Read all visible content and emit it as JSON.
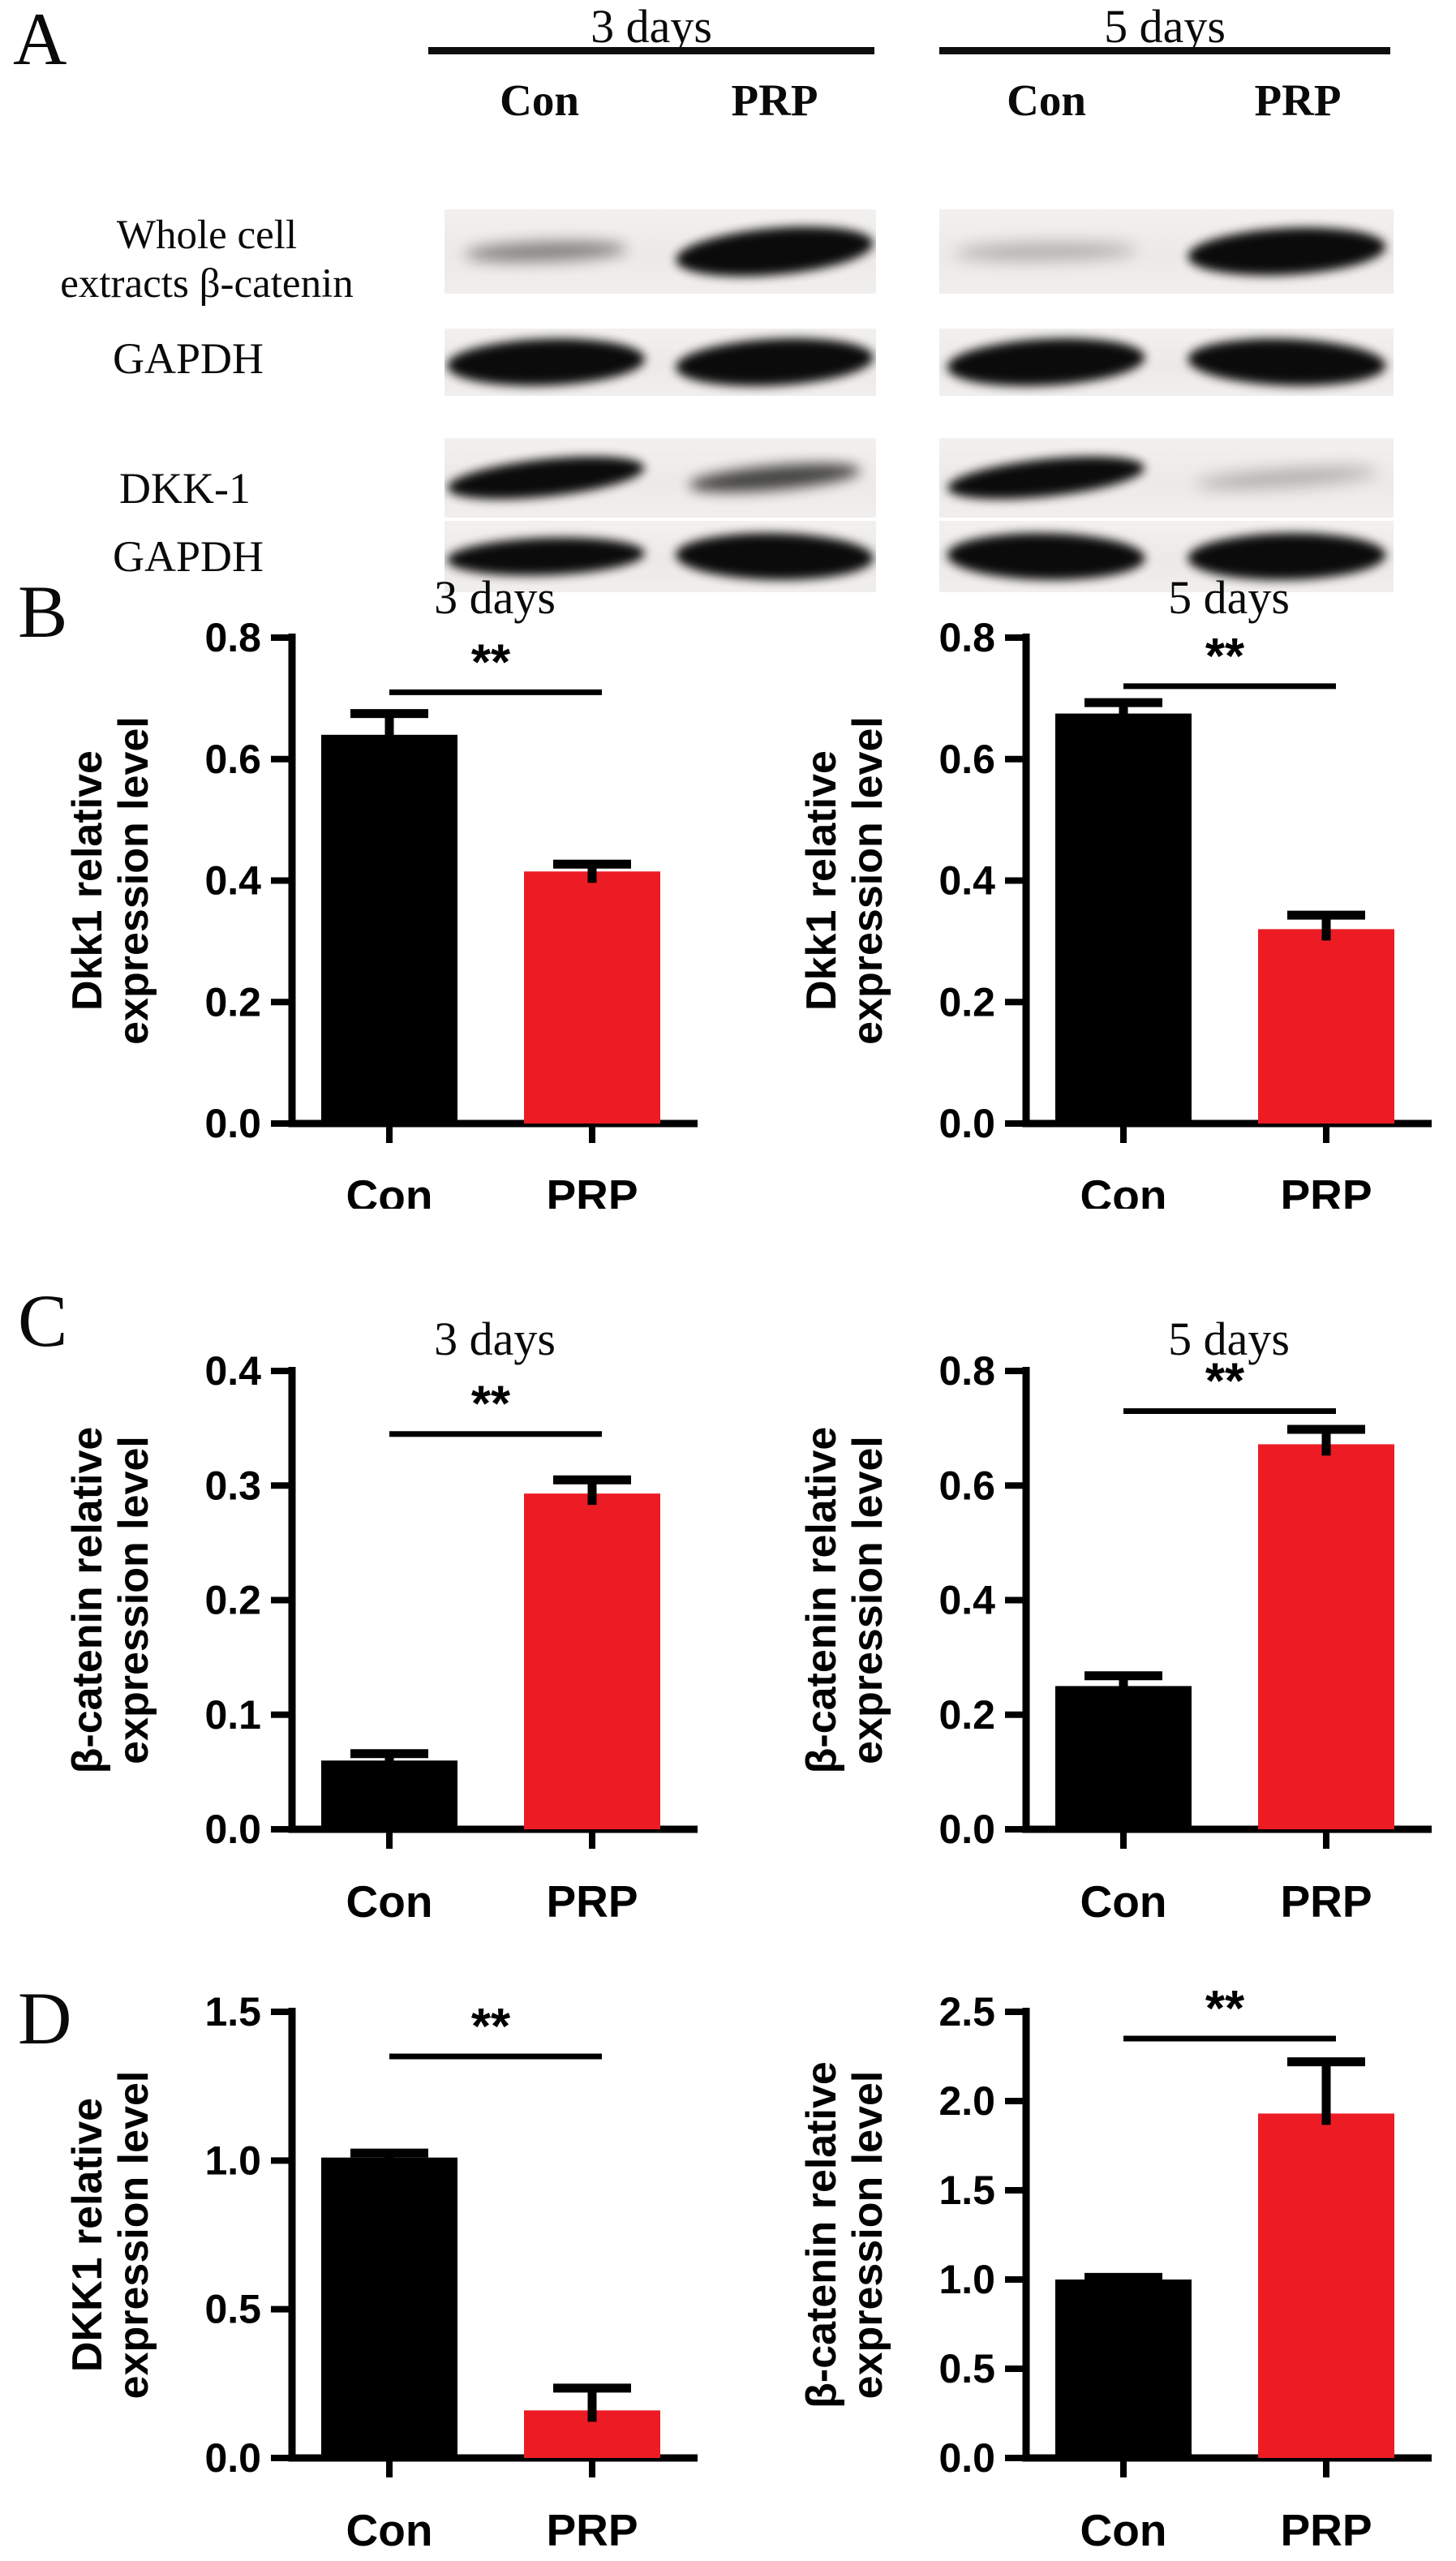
{
  "panels": {
    "a_letter": "A",
    "b_letter": "B",
    "c_letter": "C",
    "d_letter": "D"
  },
  "colors": {
    "background": "#ffffff",
    "bar_black": "#000000",
    "bar_red": "#ed1c24",
    "axis": "#000000",
    "blot_band": "#000000"
  },
  "western_blot": {
    "group_headers": [
      "3 days",
      "5 days"
    ],
    "lane_labels": [
      [
        "Con",
        "PRP"
      ],
      [
        "Con",
        "PRP"
      ]
    ],
    "row_labels": [
      [
        "Whole cell",
        "extracts β-catenin"
      ],
      [
        "GAPDH"
      ],
      [
        "DKK-1"
      ],
      [
        "GAPDH"
      ]
    ],
    "strips": [
      {
        "row": 0,
        "group": "3 days",
        "bands": [
          {
            "lane": "Con",
            "intensity": "faint",
            "tilt": -2
          },
          {
            "lane": "PRP",
            "intensity": "strong",
            "tilt": -5,
            "thick": true
          }
        ]
      },
      {
        "row": 0,
        "group": "5 days",
        "bands": [
          {
            "lane": "Con",
            "intensity": "very-faint",
            "tilt": -1
          },
          {
            "lane": "PRP",
            "intensity": "strong",
            "tilt": -3,
            "thick": true
          }
        ]
      },
      {
        "row": 1,
        "group": "3 days",
        "bands": [
          {
            "lane": "Con",
            "intensity": "strong",
            "tilt": -2,
            "thick": true
          },
          {
            "lane": "PRP",
            "intensity": "strong",
            "tilt": -3,
            "thick": true
          }
        ]
      },
      {
        "row": 1,
        "group": "5 days",
        "bands": [
          {
            "lane": "Con",
            "intensity": "strong",
            "tilt": -3,
            "thick": true
          },
          {
            "lane": "PRP",
            "intensity": "strong",
            "tilt": 2,
            "thick": true
          }
        ]
      },
      {
        "row": 2,
        "group": "3 days",
        "bands": [
          {
            "lane": "Con",
            "intensity": "strong",
            "tilt": -6
          },
          {
            "lane": "PRP",
            "intensity": "medium",
            "tilt": -5
          }
        ]
      },
      {
        "row": 2,
        "group": "5 days",
        "bands": [
          {
            "lane": "Con",
            "intensity": "strong",
            "tilt": -6
          },
          {
            "lane": "PRP",
            "intensity": "very-faint",
            "tilt": -4
          }
        ]
      },
      {
        "row": 3,
        "group": "3 days",
        "bands": [
          {
            "lane": "Con",
            "intensity": "strong",
            "tilt": -2
          },
          {
            "lane": "PRP",
            "intensity": "strong",
            "tilt": 1,
            "thick": true
          }
        ]
      },
      {
        "row": 3,
        "group": "5 days",
        "bands": [
          {
            "lane": "Con",
            "intensity": "strong",
            "tilt": 1,
            "thick": true
          },
          {
            "lane": "PRP",
            "intensity": "strong",
            "tilt": -1,
            "thick": true
          }
        ]
      }
    ]
  },
  "chart_data": [
    {
      "panel": "B",
      "side": "left",
      "type": "bar",
      "title": "3 days",
      "ylabel_lines": [
        "Dkk1 relative",
        "expression level"
      ],
      "categories": [
        "Con",
        "PRP"
      ],
      "values": [
        0.64,
        0.415
      ],
      "errors": [
        0.035,
        0.012
      ],
      "bar_colors": [
        "#000000",
        "#ed1c24"
      ],
      "ylim": [
        0,
        0.8
      ],
      "ytick_labels": [
        "0.0",
        "0.2",
        "0.4",
        "0.6",
        "0.8"
      ],
      "grid": false,
      "legend": null,
      "significance": {
        "label": "**",
        "y": 0.71
      }
    },
    {
      "panel": "B",
      "side": "right",
      "type": "bar",
      "title": "5 days",
      "ylabel_lines": [
        "Dkk1 relative",
        "expression level"
      ],
      "categories": [
        "Con",
        "PRP"
      ],
      "values": [
        0.675,
        0.32
      ],
      "errors": [
        0.018,
        0.023
      ],
      "bar_colors": [
        "#000000",
        "#ed1c24"
      ],
      "ylim": [
        0,
        0.8
      ],
      "ytick_labels": [
        "0.0",
        "0.2",
        "0.4",
        "0.6",
        "0.8"
      ],
      "grid": false,
      "legend": null,
      "significance": {
        "label": "**",
        "y": 0.72
      }
    },
    {
      "panel": "C",
      "side": "left",
      "type": "bar",
      "title": "3 days",
      "ylabel_lines": [
        "β-catenin relative",
        "expression level"
      ],
      "categories": [
        "Con",
        "PRP"
      ],
      "values": [
        0.06,
        0.293
      ],
      "errors": [
        0.006,
        0.012
      ],
      "bar_colors": [
        "#000000",
        "#ed1c24"
      ],
      "ylim": [
        0,
        0.4
      ],
      "ytick_labels": [
        "0.0",
        "0.1",
        "0.2",
        "0.3",
        "0.4"
      ],
      "grid": false,
      "legend": null,
      "significance": {
        "label": "**",
        "y": 0.345
      }
    },
    {
      "panel": "C",
      "side": "right",
      "type": "bar",
      "title": "5 days",
      "ylabel_lines": [
        "β-catenin relative",
        "expression level"
      ],
      "categories": [
        "Con",
        "PRP"
      ],
      "values": [
        0.25,
        0.672
      ],
      "errors": [
        0.018,
        0.026
      ],
      "bar_colors": [
        "#000000",
        "#ed1c24"
      ],
      "ylim": [
        0,
        0.8
      ],
      "ytick_labels": [
        "0.0",
        "0.2",
        "0.4",
        "0.6",
        "0.8"
      ],
      "grid": false,
      "legend": null,
      "significance": {
        "label": "**",
        "y": 0.73
      }
    },
    {
      "panel": "D",
      "side": "left",
      "type": "bar",
      "title": "",
      "ylabel_lines": [
        "DKK1 relative",
        "expression level"
      ],
      "categories": [
        "Con",
        "PRP"
      ],
      "values": [
        1.01,
        0.16
      ],
      "errors": [
        0.015,
        0.075
      ],
      "bar_colors": [
        "#000000",
        "#ed1c24"
      ],
      "ylim": [
        0,
        1.5
      ],
      "ytick_labels": [
        "0.0",
        "0.5",
        "1.0",
        "1.5"
      ],
      "grid": false,
      "legend": null,
      "significance": {
        "label": "**",
        "y": 1.35
      }
    },
    {
      "panel": "D",
      "side": "right",
      "type": "bar",
      "title": "",
      "ylabel_lines": [
        "β-catenin relative",
        "expression level"
      ],
      "categories": [
        "Con",
        "PRP"
      ],
      "values": [
        1.0,
        1.93
      ],
      "errors": [
        0.012,
        0.29
      ],
      "bar_colors": [
        "#000000",
        "#ed1c24"
      ],
      "ylim": [
        0,
        2.5
      ],
      "ytick_labels": [
        "0.0",
        "0.5",
        "1.0",
        "1.5",
        "2.0",
        "2.5"
      ],
      "grid": false,
      "legend": null,
      "significance": {
        "label": "**",
        "y": 2.35
      }
    }
  ]
}
